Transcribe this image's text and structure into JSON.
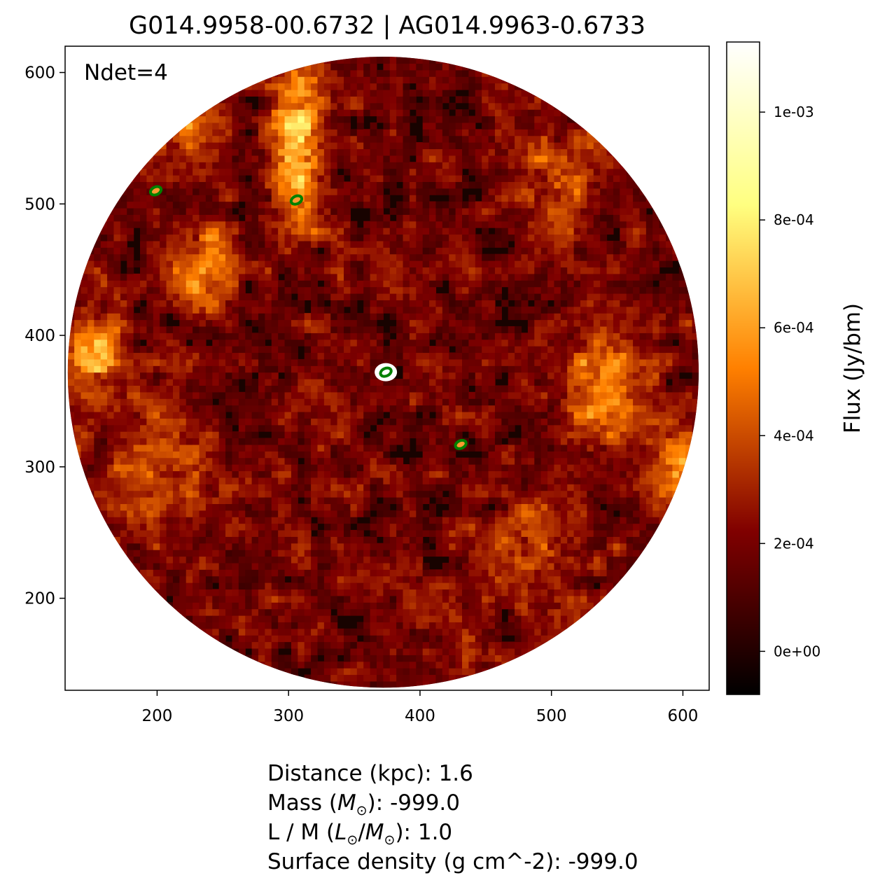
{
  "chart_data": {
    "type": "heatmap",
    "title": "G014.9958-00.6732 | AG014.9963-0.6733",
    "annotation": "Ndet=4",
    "xlim": [
      130,
      620
    ],
    "ylim": [
      130,
      620
    ],
    "x_ticks": [
      200,
      300,
      400,
      500,
      600
    ],
    "y_ticks": [
      200,
      300,
      400,
      500,
      600
    ],
    "field": {
      "shape": "circle",
      "center": [
        372,
        372
      ],
      "radius": 240
    },
    "colormap": "afmhot",
    "colorbar": {
      "label": "Flux (Jy/bm)",
      "range": [
        -8e-05,
        0.00113
      ],
      "ticks": [
        0,
        0.0002,
        0.0004,
        0.0006,
        0.0008,
        0.001
      ],
      "tick_labels": [
        "0e+00",
        "2e-04",
        "4e-04",
        "6e-04",
        "8e-04",
        "1e-03"
      ]
    },
    "detections": [
      {
        "x": 374,
        "y": 372,
        "color": "#008000",
        "bright": true
      },
      {
        "x": 431,
        "y": 317,
        "color": "#008000",
        "bright": false
      },
      {
        "x": 306,
        "y": 503,
        "color": "#008000",
        "bright": false
      },
      {
        "x": 199,
        "y": 510,
        "color": "#008000",
        "bright": false
      }
    ],
    "emission_regions": [
      {
        "x": 305,
        "y": 545,
        "sx": 20,
        "sy": 70,
        "level": 0.45
      },
      {
        "x": 235,
        "y": 450,
        "sx": 25,
        "sy": 35,
        "level": 0.35
      },
      {
        "x": 150,
        "y": 385,
        "sx": 20,
        "sy": 30,
        "level": 0.42
      },
      {
        "x": 540,
        "y": 360,
        "sx": 30,
        "sy": 45,
        "level": 0.38
      },
      {
        "x": 595,
        "y": 300,
        "sx": 20,
        "sy": 25,
        "level": 0.35
      },
      {
        "x": 500,
        "y": 520,
        "sx": 40,
        "sy": 40,
        "level": 0.22
      },
      {
        "x": 210,
        "y": 560,
        "sx": 30,
        "sy": 25,
        "level": 0.3
      },
      {
        "x": 200,
        "y": 300,
        "sx": 45,
        "sy": 60,
        "level": 0.18
      },
      {
        "x": 480,
        "y": 230,
        "sx": 50,
        "sy": 40,
        "level": 0.16
      }
    ]
  },
  "info_lines": {
    "distance_label": "Distance (kpc): ",
    "distance_value": "1.6",
    "mass_label_pre": "Mass (",
    "mass_symbol": "M",
    "mass_label_post": "): ",
    "mass_value": "-999.0",
    "lm_label_pre": "L / M (",
    "lm_symbol_l": "L",
    "lm_slash": "/",
    "lm_symbol_m": "M",
    "lm_label_post": "): ",
    "lm_value": "1.0",
    "surface_label": "Surface density (g cm^-2): ",
    "surface_value": "-999.0",
    "sun_symbol": "⊙"
  }
}
